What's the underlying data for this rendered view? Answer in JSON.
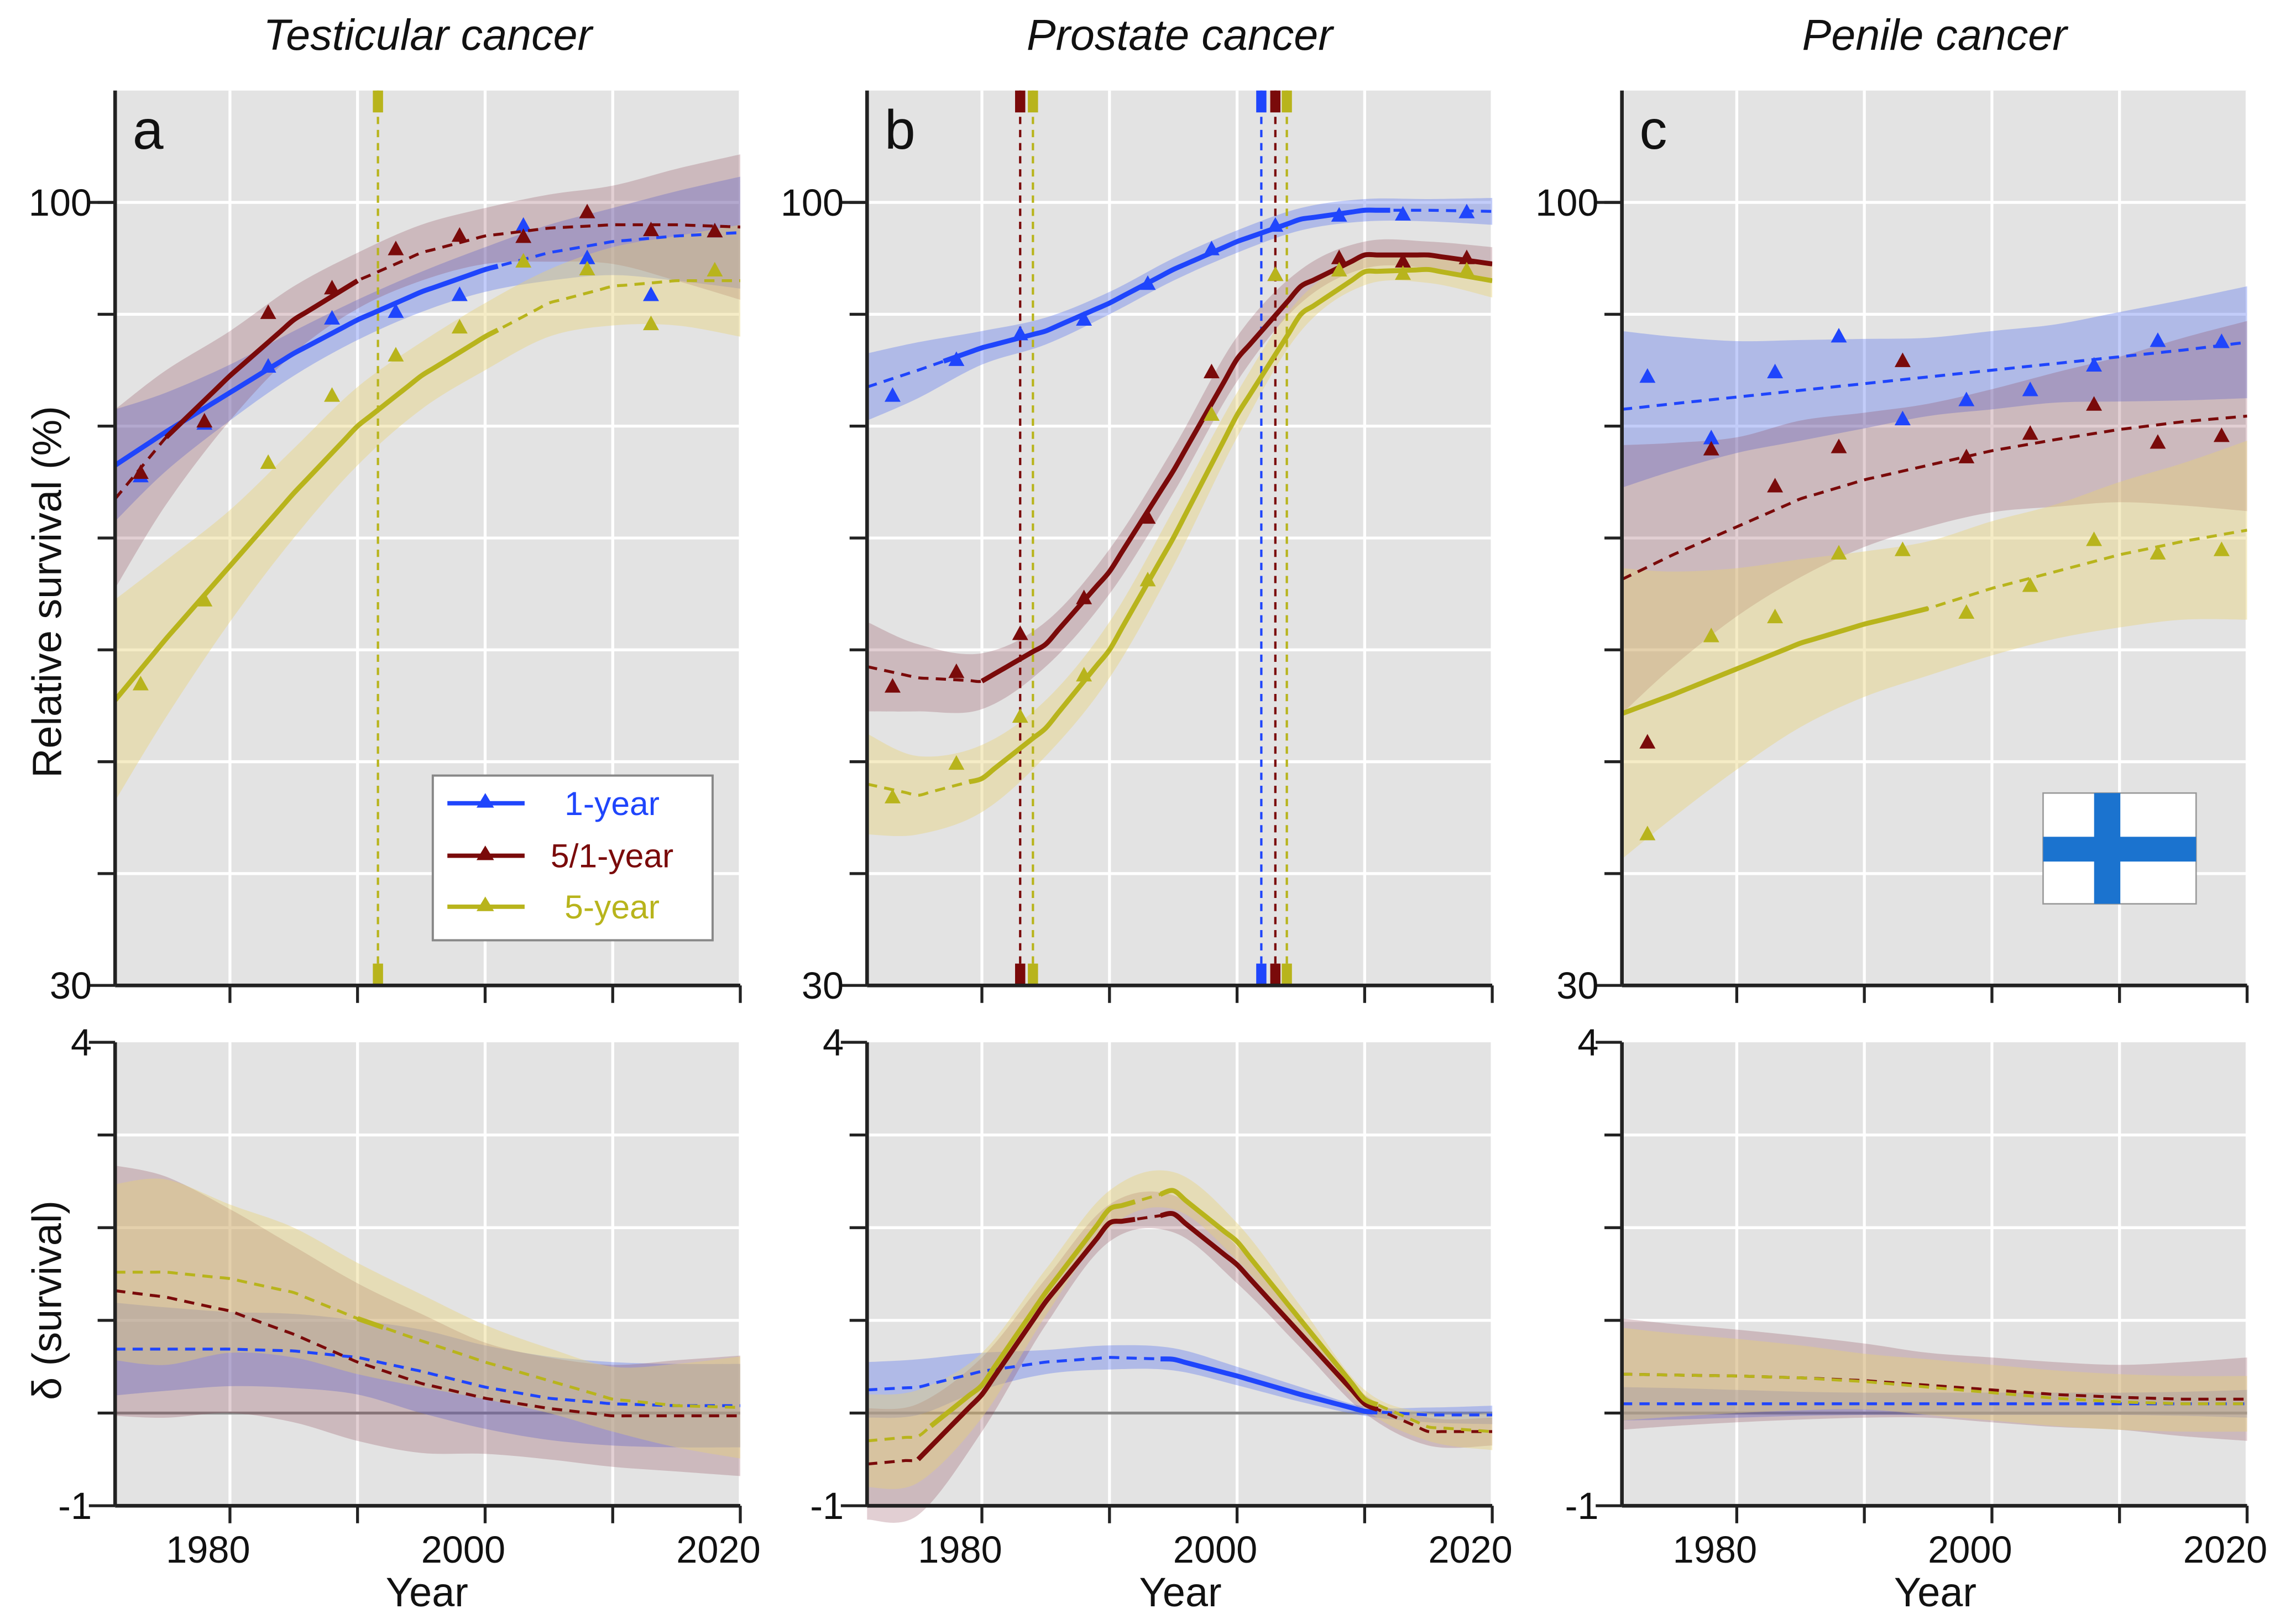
{
  "colors": {
    "1-year": "#1f45fc",
    "5/1-year": "#7a0a0a",
    "5-year": "#b8b41c",
    "bg": "#e3e3e3",
    "flag_blue": "#1b73cf"
  },
  "labels": {
    "ylabel_top": "Relative survival (%)",
    "ylabel_bottom": "δ (survival)",
    "xlabel": "Year"
  },
  "legend": {
    "position": "panel-a lower-right",
    "entries": [
      "1-year",
      "5/1-year",
      "5-year"
    ]
  },
  "chart_data": [
    {
      "type": "line",
      "letter": "a",
      "title": "Testicular cancer",
      "xlim": [
        1971,
        2020
      ],
      "xticks": [
        1980,
        2000,
        2020
      ],
      "top": {
        "ylim": [
          30,
          110
        ],
        "ytick_labels": [
          "100",
          "30"
        ],
        "ytick_values": [
          100,
          30
        ],
        "grid_step": 10,
        "curve_x": [
          1971,
          1975,
          1980,
          1985,
          1990,
          1995,
          2000,
          2005,
          2010,
          2015,
          2020
        ],
        "point_x": [
          1973,
          1978,
          1983,
          1988,
          1993,
          1998,
          2003,
          2008,
          2013,
          2018
        ],
        "series": [
          {
            "name": "1-year",
            "points": [
              75.5,
              80.2,
              85.3,
              89.6,
              90.2,
              91.7,
              97.9,
              95.0,
              91.7,
              97.4
            ],
            "fit": [
              76.5,
              79.5,
              83,
              86.5,
              89.5,
              92,
              94,
              95.5,
              96.5,
              97,
              97.3
            ],
            "ci_half": [
              5,
              3.5,
              2.5,
              2,
              1.8,
              1.8,
              2,
              2.5,
              3,
              4,
              5
            ],
            "solid": [
              [
                1971,
                2001
              ]
            ]
          },
          {
            "name": "5/1-year",
            "points": [
              75.8,
              80.4,
              90.1,
              92.3,
              95.8,
              97.0,
              96.9,
              99.1,
              97.5,
              97.4
            ],
            "fit": [
              73.5,
              79,
              84.5,
              89.5,
              93,
              95.5,
              97,
              97.7,
              98,
              98,
              97.8
            ],
            "ci_half": [
              8,
              6,
              4,
              3,
              2.5,
              2.5,
              2.5,
              3,
              3.5,
              5,
              6.5
            ],
            "solid": [
              [
                1975,
                1990
              ]
            ]
          },
          {
            "name": "5-year",
            "points": [
              56.9,
              64.4,
              76.7,
              82.7,
              86.3,
              88.8,
              94.7,
              94.0,
              89.1,
              93.9
            ],
            "fit": [
              55.5,
              61,
              67.5,
              74,
              80,
              84.5,
              88,
              91,
              92.5,
              93,
              93
            ],
            "ci_half": [
              9,
              7,
              5,
              4,
              3.5,
              3,
              3,
              3,
              3.5,
              4,
              5
            ],
            "solid": [
              [
                1971,
                2001
              ]
            ]
          }
        ],
        "breakpoints": [
          {
            "series": "5-year",
            "year": 1991.6
          }
        ]
      },
      "bottom": {
        "ylim": [
          -1,
          4
        ],
        "ytick_labels": [
          "4",
          "-1"
        ],
        "ytick_values": [
          4,
          -1
        ],
        "grid_step": 1,
        "series": [
          {
            "name": "1-year",
            "fit": [
              0.69,
              0.69,
              0.69,
              0.67,
              0.6,
              0.45,
              0.28,
              0.16,
              0.1,
              0.08,
              0.08
            ],
            "ci_half": [
              0.5,
              0.45,
              0.4,
              0.4,
              0.4,
              0.45,
              0.45,
              0.45,
              0.45,
              0.45,
              0.45
            ],
            "solid": []
          },
          {
            "name": "5/1-year",
            "fit": [
              1.32,
              1.25,
              1.1,
              0.85,
              0.55,
              0.32,
              0.16,
              0.05,
              -0.03,
              -0.03,
              -0.03
            ],
            "ci_half": [
              1.35,
              1.3,
              1.1,
              0.95,
              0.85,
              0.75,
              0.6,
              0.55,
              0.55,
              0.6,
              0.65
            ],
            "solid": []
          },
          {
            "name": "5-year",
            "fit": [
              1.52,
              1.52,
              1.45,
              1.3,
              1.02,
              0.78,
              0.55,
              0.35,
              0.15,
              0.08,
              0.06
            ],
            "ci_half": [
              0.95,
              1.0,
              0.8,
              0.7,
              0.6,
              0.5,
              0.4,
              0.35,
              0.35,
              0.45,
              0.55
            ],
            "solid": [
              [
                1990,
                1992
              ]
            ]
          }
        ]
      }
    },
    {
      "type": "line",
      "letter": "b",
      "title": "Prostate cancer",
      "xlim": [
        1971,
        2020
      ],
      "xticks": [
        1980,
        2000,
        2020
      ],
      "top": {
        "ylim": [
          30,
          110
        ],
        "ytick_labels": [
          "100",
          "30"
        ],
        "ytick_values": [
          100,
          30
        ],
        "grid_step": 10,
        "curve_x": [
          1971,
          1975,
          1980,
          1985,
          1990,
          1995,
          2000,
          2005,
          2010,
          2015,
          2020
        ],
        "point_x": [
          1973,
          1978,
          1983,
          1988,
          1993,
          1998,
          2003,
          2008,
          2013,
          2018
        ],
        "series": [
          {
            "name": "1-year",
            "points": [
              82.7,
              85.9,
              88.2,
              89.5,
              92.7,
              95.8,
              97.9,
              98.8,
              98.9,
              99.1
            ],
            "fit": [
              83.5,
              85,
              87,
              88.5,
              91,
              94,
              96.5,
              98.5,
              99.3,
              99.3,
              99.2
            ],
            "ci_half": [
              3,
              2.5,
              1.5,
              1.2,
              1,
              1,
              1,
              1,
              1,
              1,
              1.2
            ],
            "solid": [
              [
                1977,
                2012
              ]
            ]
          },
          {
            "name": "5/1-year",
            "points": [
              56.7,
              58.0,
              61.4,
              64.6,
              71.8,
              84.8,
              93.5,
              95.0,
              94.7,
              95.0
            ],
            "fit": [
              58.5,
              57.5,
              57.2,
              60.5,
              67,
              76,
              86,
              92.5,
              95.3,
              95.3,
              94.5
            ],
            "ci_half": [
              4,
              3,
              2.5,
              2,
              2,
              2,
              2,
              1.5,
              1.2,
              1.2,
              1.5
            ],
            "solid": [
              [
                1980,
                2020
              ]
            ]
          },
          {
            "name": "5-year",
            "points": [
              46.8,
              49.8,
              54.0,
              57.7,
              66.2,
              81.0,
              93.5,
              93.9,
              93.6,
              93.9
            ],
            "fit": [
              48,
              47,
              48.5,
              53,
              60,
              70,
              81,
              90,
              93.8,
              94,
              93
            ],
            "ci_half": [
              4.5,
              3.5,
              3,
              2.5,
              2.5,
              2.5,
              2,
              1.5,
              1.2,
              1.2,
              1.5
            ],
            "solid": [
              [
                1979,
                2020
              ]
            ]
          }
        ],
        "breakpoints": [
          {
            "series": "5/1-year",
            "year": 1983.0
          },
          {
            "series": "5-year",
            "year": 1984.0
          },
          {
            "series": "1-year",
            "year": 2001.9
          },
          {
            "series": "5/1-year",
            "year": 2003.0
          },
          {
            "series": "5-year",
            "year": 2003.9
          }
        ]
      },
      "bottom": {
        "ylim": [
          -1,
          4
        ],
        "ytick_labels": [
          "4",
          "-1"
        ],
        "ytick_values": [
          4,
          -1
        ],
        "grid_step": 1,
        "series": [
          {
            "name": "1-year",
            "fit": [
              0.25,
              0.28,
              0.45,
              0.55,
              0.6,
              0.58,
              0.4,
              0.2,
              0.02,
              -0.02,
              -0.02
            ],
            "ci_half": [
              0.3,
              0.3,
              0.2,
              0.13,
              0.13,
              0.12,
              0.1,
              0.08,
              0.05,
              0.08,
              0.1
            ],
            "solid": [
              [
                1994,
                2011
              ]
            ]
          },
          {
            "name": "5/1-year",
            "fit": [
              -0.55,
              -0.5,
              0.2,
              1.2,
              2.05,
              2.15,
              1.6,
              0.85,
              0.1,
              -0.2,
              -0.2
            ],
            "ci_half": [
              0.6,
              0.6,
              0.4,
              0.25,
              0.2,
              0.2,
              0.2,
              0.15,
              0.1,
              0.15,
              0.15
            ],
            "solid": [
              [
                1975,
                1992
              ],
              [
                1994,
                2011
              ]
            ]
          },
          {
            "name": "5-year",
            "fit": [
              -0.3,
              -0.25,
              0.3,
              1.3,
              2.2,
              2.4,
              1.85,
              1.0,
              0.15,
              -0.15,
              -0.2
            ],
            "ci_half": [
              0.5,
              0.5,
              0.35,
              0.25,
              0.2,
              0.2,
              0.2,
              0.15,
              0.1,
              0.15,
              0.2
            ],
            "solid": [
              [
                1976,
                1992
              ],
              [
                1994,
                2011
              ]
            ]
          }
        ]
      }
    },
    {
      "type": "line",
      "letter": "c",
      "title": "Penile cancer",
      "xlim": [
        1971,
        2020
      ],
      "xticks": [
        1980,
        2000,
        2020
      ],
      "top": {
        "ylim": [
          30,
          110
        ],
        "ytick_labels": [
          "100",
          "30"
        ],
        "ytick_values": [
          100,
          30
        ],
        "grid_step": 10,
        "curve_x": [
          1971,
          1975,
          1980,
          1985,
          1990,
          1995,
          2000,
          2005,
          2010,
          2015,
          2020
        ],
        "point_x": [
          1973,
          1978,
          1983,
          1988,
          1993,
          1998,
          2003,
          2008,
          2013,
          2018
        ],
        "series": [
          {
            "name": "1-year",
            "points": [
              84.4,
              78.9,
              84.8,
              88.0,
              80.6,
              82.3,
              83.2,
              85.4,
              87.6,
              87.5
            ],
            "fit": [
              81.5,
              82,
              82.6,
              83.2,
              83.8,
              84.4,
              85,
              85.6,
              86.2,
              86.8,
              87.5
            ],
            "ci_half": [
              7,
              6,
              5,
              4.5,
              4,
              3.5,
              3.5,
              3.5,
              4,
              4.5,
              5
            ],
            "solid": []
          },
          {
            "name": "5/1-year",
            "points": [
              51.7,
              77.9,
              74.6,
              78.1,
              85.8,
              77.2,
              79.3,
              81.9,
              78.5,
              79.1
            ],
            "fit": [
              66.3,
              68.5,
              71,
              73.5,
              75.2,
              76.5,
              77.8,
              78.8,
              79.7,
              80.4,
              80.9
            ],
            "ci_half": [
              12,
              10,
              8,
              7,
              6,
              5.5,
              5.5,
              6,
              6.5,
              7.5,
              8.5
            ],
            "solid": []
          },
          {
            "name": "5-year",
            "points": [
              43.5,
              61.2,
              62.9,
              68.6,
              68.9,
              63.3,
              65.7,
              69.8,
              68.6,
              68.9
            ],
            "fit": [
              54.3,
              56,
              58.3,
              60.6,
              62.3,
              63.7,
              65.5,
              67,
              68.5,
              69.7,
              70.7
            ],
            "ci_half": [
              13,
              11,
              9,
              7.5,
              6.5,
              6,
              6,
              6,
              6.5,
              7,
              8
            ],
            "solid": [
              [
                1971,
                1995
              ]
            ]
          }
        ],
        "breakpoints": [],
        "flag": "Finland"
      },
      "bottom": {
        "ylim": [
          -1,
          4
        ],
        "ytick_labels": [
          "4",
          "-1"
        ],
        "ytick_values": [
          4,
          -1
        ],
        "grid_step": 1,
        "series": [
          {
            "name": "1-year",
            "fit": [
              0.1,
              0.1,
              0.1,
              0.1,
              0.1,
              0.1,
              0.1,
              0.1,
              0.1,
              0.1,
              0.1
            ],
            "ci_half": [
              0.18,
              0.17,
              0.15,
              0.13,
              0.12,
              0.12,
              0.12,
              0.12,
              0.12,
              0.13,
              0.15
            ],
            "solid": []
          },
          {
            "name": "5/1-year",
            "fit": [
              0.42,
              0.41,
              0.4,
              0.38,
              0.35,
              0.3,
              0.25,
              0.2,
              0.17,
              0.15,
              0.15
            ],
            "ci_half": [
              0.6,
              0.55,
              0.5,
              0.45,
              0.4,
              0.35,
              0.35,
              0.35,
              0.35,
              0.4,
              0.45
            ],
            "solid": []
          },
          {
            "name": "5-year",
            "fit": [
              0.42,
              0.41,
              0.4,
              0.38,
              0.34,
              0.28,
              0.22,
              0.16,
              0.12,
              0.1,
              0.1
            ],
            "ci_half": [
              0.5,
              0.45,
              0.4,
              0.35,
              0.3,
              0.3,
              0.3,
              0.3,
              0.3,
              0.3,
              0.3
            ],
            "solid": []
          }
        ]
      }
    }
  ]
}
